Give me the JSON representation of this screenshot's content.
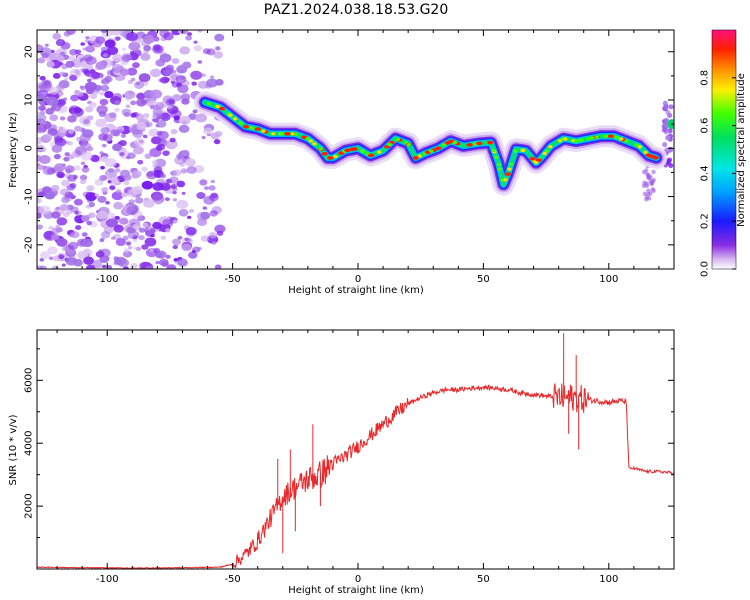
{
  "figure": {
    "title": "PAZ1.2024.038.18.53.G20"
  },
  "chart_data": [
    {
      "type": "heatmap",
      "xlabel": "Height of straight line (km)",
      "ylabel": "Frequency (Hz)",
      "xlim": [
        -128,
        126
      ],
      "ylim": [
        -25,
        24.5
      ],
      "xticks": [
        -100,
        -50,
        0,
        50,
        100
      ],
      "yticks": [
        -20,
        -10,
        0,
        10,
        20
      ],
      "grid": false,
      "colorbar": {
        "label": "Normalized spectral amplitude",
        "range": [
          0,
          1
        ],
        "ticks": [
          0.0,
          0.2,
          0.4,
          0.6,
          0.8
        ]
      },
      "ridge": {
        "x": [
          -61,
          -55,
          -50,
          -45,
          -40,
          -35,
          -30,
          -25,
          -20,
          -15,
          -12,
          -10,
          -5,
          0,
          5,
          10,
          15,
          20,
          23,
          27,
          32,
          37,
          42,
          48,
          53,
          56,
          58,
          60,
          63,
          67,
          71,
          73,
          77,
          82,
          87,
          92,
          97,
          102,
          107,
          112,
          116,
          119
        ],
        "y": [
          9.5,
          8.5,
          6.5,
          4.5,
          4,
          3,
          3,
          3,
          2,
          0,
          -2,
          -2,
          -0.5,
          0,
          -1.5,
          -0.5,
          2,
          1,
          -2,
          -1,
          0,
          1.5,
          0.5,
          1,
          1.2,
          -3,
          -7.5,
          -5,
          -0.2,
          -0.5,
          -3,
          -2,
          0.5,
          2,
          1.5,
          2,
          2.5,
          2.5,
          1.5,
          0.5,
          -1.5,
          -2
        ]
      },
      "noise_region_x": [
        -128,
        -55
      ]
    },
    {
      "type": "line",
      "xlabel": "Height of straight line (km)",
      "ylabel": "SNR (10 * v/v)",
      "xlim": [
        -128,
        126
      ],
      "ylim": [
        0,
        7600
      ],
      "xticks": [
        -100,
        -50,
        0,
        50,
        100
      ],
      "yticks": [
        2000,
        4000,
        6000
      ],
      "grid": false,
      "series": [
        {
          "color": "#e8282a",
          "x": [
            -128,
            -110,
            -90,
            -70,
            -55,
            -50,
            -45,
            -40,
            -35,
            -30,
            -25,
            -20,
            -15,
            -10,
            -5,
            0,
            5,
            10,
            15,
            20,
            25,
            30,
            35,
            40,
            45,
            50,
            55,
            60,
            65,
            70,
            75,
            80,
            85,
            90,
            95,
            100,
            105,
            107,
            108,
            110,
            115,
            120,
            126
          ],
          "y": [
            60,
            40,
            30,
            40,
            60,
            150,
            450,
            900,
            1600,
            2300,
            2600,
            2850,
            3000,
            3350,
            3600,
            3900,
            4250,
            4600,
            4950,
            5250,
            5450,
            5600,
            5700,
            5700,
            5750,
            5780,
            5750,
            5700,
            5600,
            5550,
            5500,
            5450,
            5450,
            5400,
            5350,
            5300,
            5350,
            5300,
            3200,
            3200,
            3100,
            3100,
            3050
          ],
          "spikes": [
            {
              "x": -32,
              "y": 3500
            },
            {
              "x": -30,
              "y": 500
            },
            {
              "x": -27,
              "y": 3800
            },
            {
              "x": -25,
              "y": 1200
            },
            {
              "x": -18,
              "y": 4600
            },
            {
              "x": -15,
              "y": 2000
            },
            {
              "x": 82,
              "y": 7500
            },
            {
              "x": 84,
              "y": 4300
            },
            {
              "x": 87,
              "y": 6800
            },
            {
              "x": 88,
              "y": 3800
            }
          ]
        }
      ]
    }
  ]
}
